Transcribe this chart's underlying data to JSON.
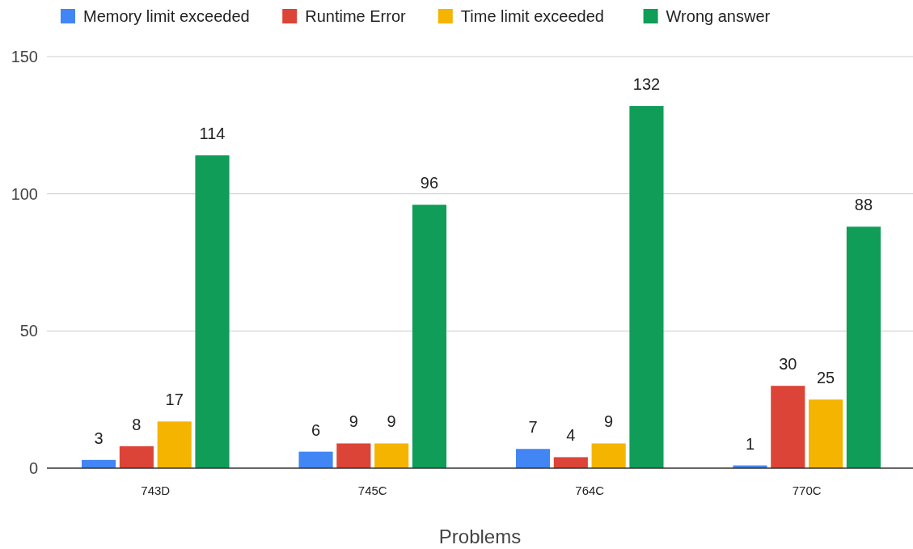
{
  "chart_data": {
    "type": "bar",
    "xlabel": "Problems",
    "categories": [
      "743D",
      "745C",
      "764C",
      "770C"
    ],
    "series": [
      {
        "name": "Memory limit exceeded",
        "color": "#4285f4",
        "values": [
          3,
          6,
          7,
          1
        ]
      },
      {
        "name": "Runtime Error",
        "color": "#db4437",
        "values": [
          8,
          9,
          4,
          30
        ]
      },
      {
        "name": "Time limit exceeded",
        "color": "#f4b400",
        "values": [
          17,
          9,
          9,
          25
        ]
      },
      {
        "name": "Wrong answer",
        "color": "#0f9d58",
        "values": [
          114,
          96,
          132,
          88
        ]
      }
    ],
    "ylim": [
      0,
      150
    ],
    "yticks": [
      0,
      50,
      100,
      150
    ],
    "grid": "y",
    "legend": "top",
    "data_labels": true
  }
}
